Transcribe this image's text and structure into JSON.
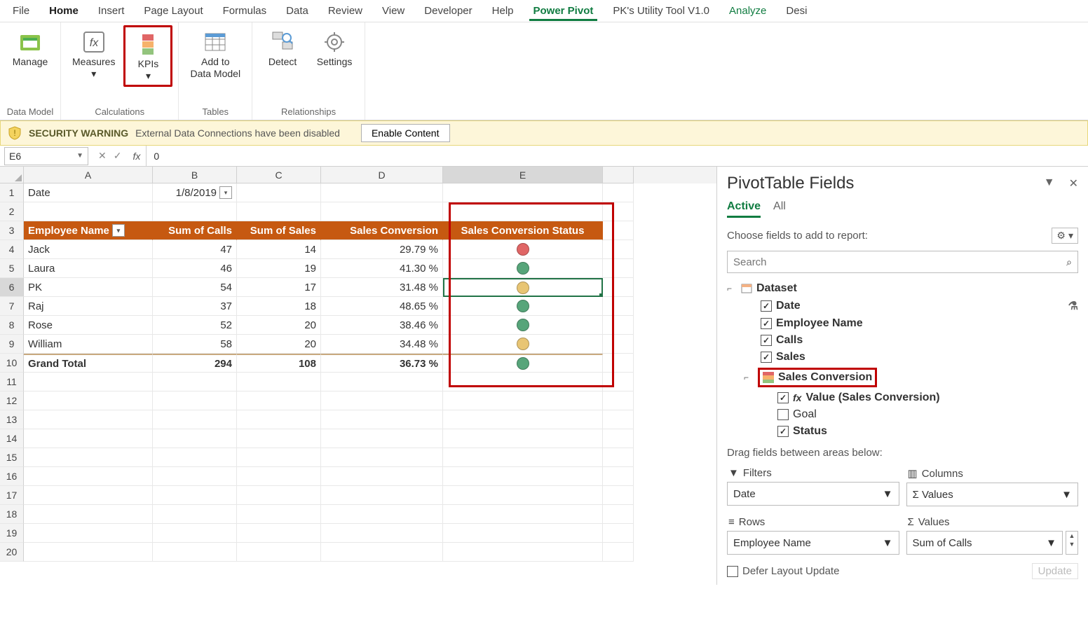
{
  "ribbon": {
    "tabs": [
      "File",
      "Home",
      "Insert",
      "Page Layout",
      "Formulas",
      "Data",
      "Review",
      "View",
      "Developer",
      "Help",
      "Power Pivot",
      "PK's Utility Tool V1.0",
      "Analyze",
      "Desi"
    ],
    "active_tab": "Home",
    "pivot_tab": "Power Pivot",
    "groups": {
      "data_model": {
        "name": "Data Model",
        "manage": "Manage"
      },
      "calculations": {
        "name": "Calculations",
        "measures": "Measures",
        "kpis": "KPIs"
      },
      "tables": {
        "name": "Tables",
        "add": "Add to",
        "add2": "Data Model"
      },
      "relationships": {
        "name": "Relationships",
        "detect": "Detect",
        "settings": "Settings"
      }
    }
  },
  "security": {
    "title": "SECURITY WARNING",
    "msg": "External Data Connections have been disabled",
    "btn": "Enable Content"
  },
  "formula_bar": {
    "name_box": "E6",
    "value": "0"
  },
  "columns": [
    "A",
    "B",
    "C",
    "D",
    "E"
  ],
  "pivot": {
    "filter_label": "Date",
    "filter_value": "1/8/2019",
    "headers": [
      "Employee Name",
      "Sum of Calls",
      "Sum of Sales",
      "Sales Conversion",
      "Sales Conversion Status"
    ],
    "rows": [
      {
        "name": "Jack",
        "calls": "47",
        "sales": "14",
        "conv": "29.79 %",
        "status": "red"
      },
      {
        "name": "Laura",
        "calls": "46",
        "sales": "19",
        "conv": "41.30 %",
        "status": "green"
      },
      {
        "name": "PK",
        "calls": "54",
        "sales": "17",
        "conv": "31.48 %",
        "status": "yellow"
      },
      {
        "name": "Raj",
        "calls": "37",
        "sales": "18",
        "conv": "48.65 %",
        "status": "green"
      },
      {
        "name": "Rose",
        "calls": "52",
        "sales": "20",
        "conv": "38.46 %",
        "status": "green"
      },
      {
        "name": "William",
        "calls": "58",
        "sales": "20",
        "conv": "34.48 %",
        "status": "yellow"
      }
    ],
    "total": {
      "label": "Grand Total",
      "calls": "294",
      "sales": "108",
      "conv": "36.73 %",
      "status": "green"
    }
  },
  "fields_pane": {
    "title": "PivotTable Fields",
    "tab_active": "Active",
    "tab_all": "All",
    "choose": "Choose fields to add to report:",
    "search_placeholder": "Search",
    "table": "Dataset",
    "fields": {
      "date": "Date",
      "emp": "Employee Name",
      "calls": "Calls",
      "sales": "Sales",
      "kpi": "Sales Conversion",
      "value": "Value (Sales Conversion)",
      "goal": "Goal",
      "status": "Status"
    },
    "drag_label": "Drag fields between areas below:",
    "area_filters": "Filters",
    "area_columns": "Columns",
    "area_rows": "Rows",
    "area_values": "Values",
    "filters_val": "Date",
    "columns_val": "Σ Values",
    "rows_val": "Employee Name",
    "values_val": "Sum of Calls",
    "defer": "Defer Layout Update",
    "update": "Update"
  },
  "colors": {
    "pivot_header": "#c65911",
    "excel_green": "#217346",
    "warn_bg": "#fdf6d9",
    "red": "#e06666",
    "green": "#57a57a",
    "yellow": "#e8c574",
    "highlight": "#c00000"
  }
}
